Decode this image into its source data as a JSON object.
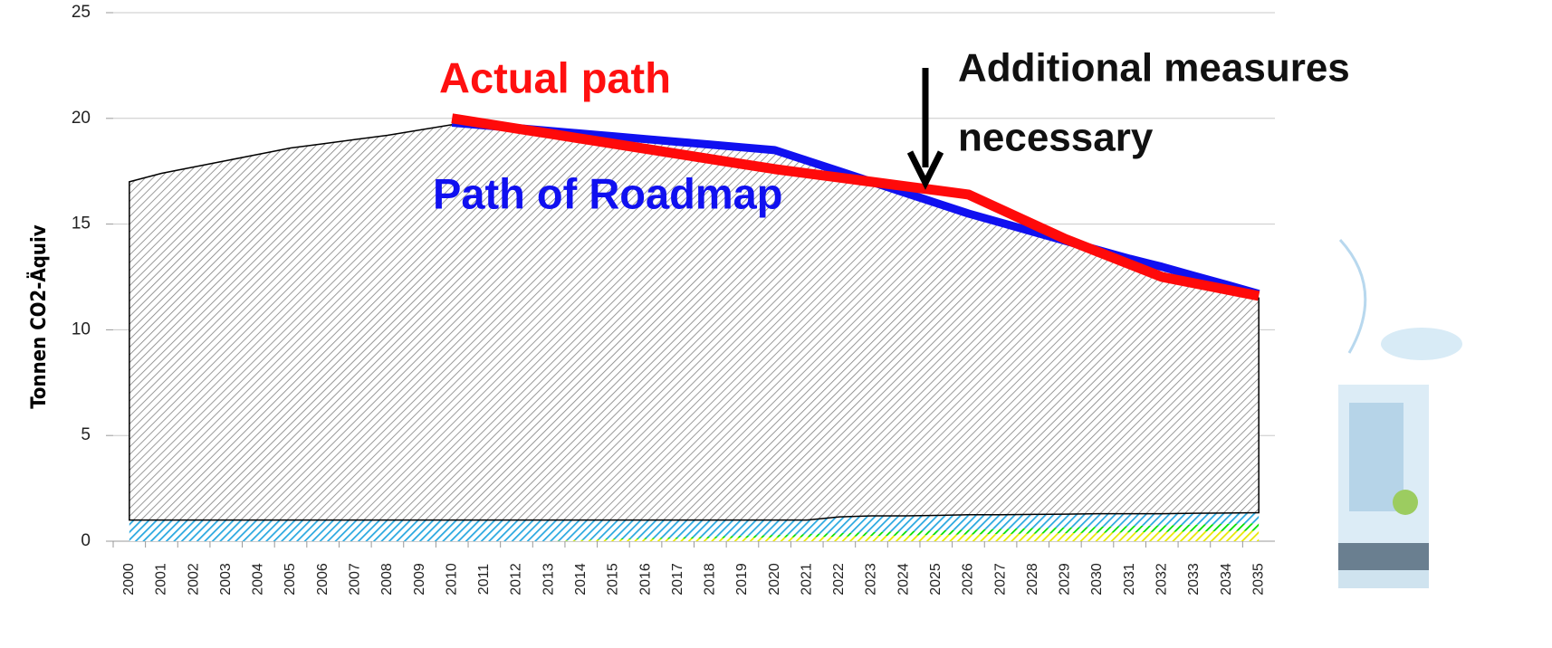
{
  "chart_data": {
    "type": "area",
    "y_label": "Tonnen CO2-Äquiv",
    "categories": [
      "2000",
      "2001",
      "2002",
      "2003",
      "2004",
      "2005",
      "2006",
      "2007",
      "2008",
      "2009",
      "2010",
      "2011",
      "2012",
      "2013",
      "2014",
      "2015",
      "2016",
      "2017",
      "2018",
      "2019",
      "2020",
      "2021",
      "2022",
      "2023",
      "2024",
      "2025",
      "2026",
      "2027",
      "2028",
      "2029",
      "2030",
      "2031",
      "2032",
      "2033",
      "2034",
      "2035"
    ],
    "ylim": [
      0,
      25
    ],
    "yticks": [
      0,
      5,
      10,
      15,
      20,
      25
    ],
    "grid": true,
    "hatched": true,
    "series": [
      {
        "color": "#e8e800",
        "values": [
          0,
          0,
          0,
          0,
          0,
          0,
          0,
          0,
          0,
          0,
          0,
          0,
          0,
          0,
          0.05,
          0.08,
          0.1,
          0.12,
          0.14,
          0.16,
          0.18,
          0.2,
          0.22,
          0.25,
          0.27,
          0.3,
          0.32,
          0.34,
          0.36,
          0.38,
          0.4,
          0.42,
          0.44,
          0.46,
          0.48,
          0.5
        ]
      },
      {
        "color": "#00e000",
        "values": [
          0,
          0,
          0,
          0,
          0,
          0,
          0,
          0,
          0,
          0,
          0,
          0,
          0,
          0,
          0.02,
          0.04,
          0.05,
          0.06,
          0.08,
          0.1,
          0.12,
          0.14,
          0.16,
          0.18,
          0.2,
          0.21,
          0.22,
          0.24,
          0.26,
          0.27,
          0.28,
          0.3,
          0.31,
          0.32,
          0.34,
          0.35
        ]
      },
      {
        "color": "#29a8e0",
        "values": [
          1,
          1,
          1,
          1,
          1,
          1,
          1,
          1,
          1,
          1,
          1,
          1,
          1,
          1,
          0.93,
          0.88,
          0.85,
          0.82,
          0.78,
          0.74,
          0.7,
          0.66,
          0.77,
          0.77,
          0.73,
          0.71,
          0.71,
          0.67,
          0.65,
          0.63,
          0.62,
          0.58,
          0.55,
          0.54,
          0.51,
          0.5
        ]
      },
      {
        "color": "#808080",
        "values": [
          16.0,
          16.4,
          16.7,
          17.0,
          17.3,
          17.6,
          17.8,
          18.0,
          18.2,
          18.45,
          18.7,
          18.58,
          18.46,
          18.34,
          18.22,
          18.1,
          17.98,
          17.86,
          17.74,
          17.62,
          17.5,
          17.0,
          16.35,
          15.8,
          15.3,
          14.78,
          14.25,
          13.81,
          13.34,
          12.89,
          12.42,
          11.98,
          11.53,
          11.07,
          10.61,
          10.15
        ]
      }
    ],
    "line_series": [
      {
        "color": "#1010f0",
        "values": [
          null,
          null,
          null,
          null,
          null,
          null,
          null,
          null,
          null,
          null,
          19.8,
          19.67,
          19.54,
          19.41,
          19.28,
          19.15,
          19.02,
          18.89,
          18.76,
          18.63,
          18.5,
          18.0,
          17.5,
          17.0,
          16.5,
          16.0,
          15.5,
          15.07,
          14.64,
          14.21,
          13.78,
          13.36,
          12.98,
          12.55,
          12.13,
          11.7
        ]
      },
      {
        "color": "#ff0a0a",
        "values": [
          null,
          null,
          null,
          null,
          null,
          null,
          null,
          null,
          null,
          null,
          20.0,
          19.76,
          19.52,
          19.28,
          19.04,
          18.8,
          18.56,
          18.32,
          18.08,
          17.84,
          17.6,
          17.4,
          17.2,
          17.0,
          16.8,
          16.6,
          16.4,
          15.7,
          15.0,
          14.3,
          13.7,
          13.1,
          12.5,
          12.2,
          11.9,
          11.6
        ]
      }
    ],
    "annotations": [
      "Actual path",
      "Path of Roadmap",
      "Additional measures",
      "necessary"
    ]
  }
}
